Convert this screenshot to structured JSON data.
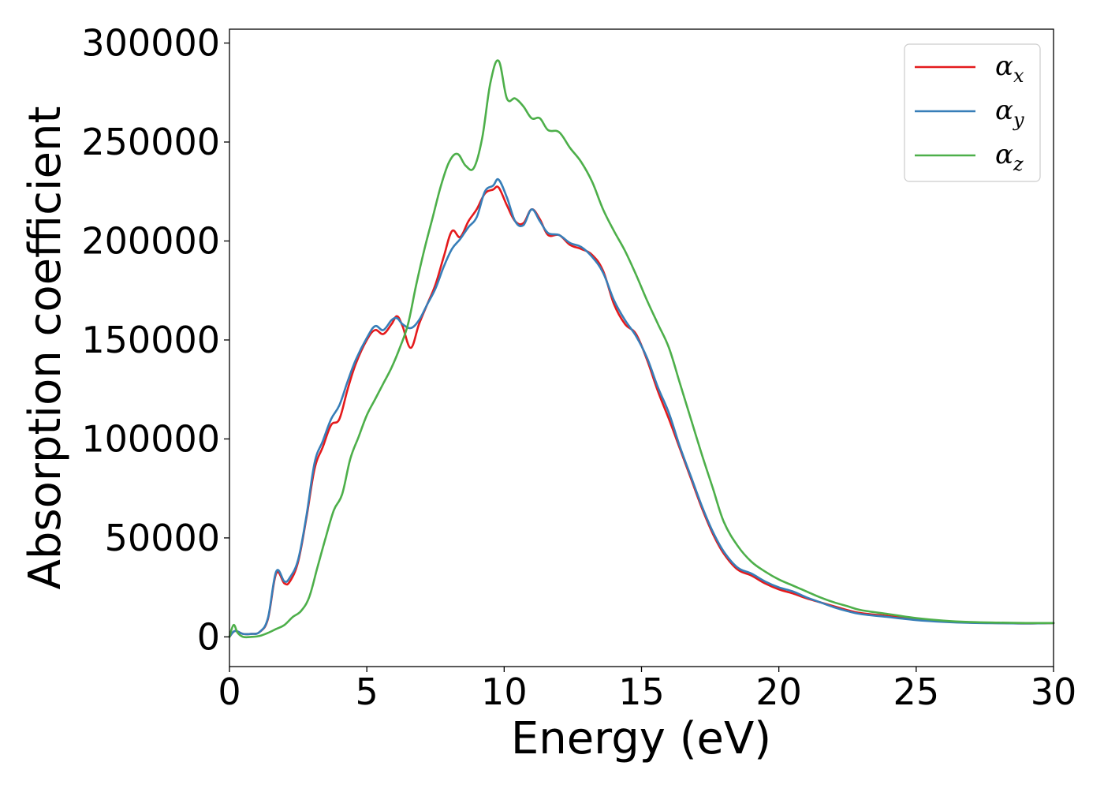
{
  "chart_data": {
    "type": "line",
    "xlabel": "Energy (eV)",
    "ylabel": "Absorption coefficient",
    "xlim": [
      0,
      30
    ],
    "ylim": [
      -15000,
      307000
    ],
    "xticks": [
      0,
      5,
      10,
      15,
      20,
      25,
      30
    ],
    "xtick_labels": [
      "0",
      "5",
      "10",
      "15",
      "20",
      "25",
      "30"
    ],
    "yticks": [
      0,
      50000,
      100000,
      150000,
      200000,
      250000,
      300000
    ],
    "ytick_labels": [
      "0",
      "50000",
      "100000",
      "150000",
      "200000",
      "250000",
      "300000"
    ],
    "grid": false,
    "legend_position": "top-right",
    "series": [
      {
        "name": "αx",
        "legend_symbol": "α",
        "legend_subscript": "x",
        "color": "#e41a1c",
        "x": [
          0,
          0.2,
          0.5,
          0.8,
          1.1,
          1.4,
          1.7,
          2.0,
          2.2,
          2.5,
          2.8,
          3.1,
          3.4,
          3.7,
          4.0,
          4.3,
          4.6,
          5.0,
          5.3,
          5.6,
          5.9,
          6.1,
          6.3,
          6.6,
          6.9,
          7.2,
          7.5,
          7.8,
          8.1,
          8.4,
          8.7,
          9.0,
          9.3,
          9.6,
          9.8,
          10.1,
          10.4,
          10.7,
          11.0,
          11.3,
          11.6,
          12.0,
          12.4,
          12.8,
          13.2,
          13.6,
          14.0,
          14.4,
          14.8,
          15.2,
          15.6,
          16.0,
          16.4,
          16.8,
          17.2,
          17.6,
          18.0,
          18.5,
          19.0,
          19.5,
          20.0,
          20.5,
          21.0,
          21.5,
          22.0,
          22.5,
          23.0,
          24.0,
          25.0,
          26.0,
          27.0,
          28.0,
          29.0,
          30.0
        ],
        "y": [
          0,
          3000,
          1500,
          1500,
          2500,
          9000,
          32000,
          27000,
          28000,
          38000,
          60000,
          85000,
          96000,
          107000,
          110000,
          125000,
          138000,
          150000,
          155000,
          153000,
          158000,
          162000,
          157000,
          146000,
          158000,
          168000,
          178000,
          192000,
          205000,
          202000,
          210000,
          216000,
          224000,
          226000,
          227000,
          218000,
          210000,
          209000,
          216000,
          211000,
          203000,
          203000,
          198000,
          196000,
          193000,
          185000,
          168000,
          158000,
          153000,
          140000,
          124000,
          110000,
          95000,
          80000,
          65000,
          52000,
          42000,
          34000,
          31000,
          27000,
          24000,
          22000,
          19500,
          17500,
          15500,
          13500,
          12000,
          10500,
          9000,
          7800,
          7200,
          7000,
          6800,
          7000
        ]
      },
      {
        "name": "αy",
        "legend_symbol": "α",
        "legend_subscript": "y",
        "color": "#377eb8",
        "x": [
          0,
          0.2,
          0.5,
          0.8,
          1.1,
          1.4,
          1.7,
          2.0,
          2.2,
          2.5,
          2.8,
          3.1,
          3.4,
          3.7,
          4.0,
          4.3,
          4.6,
          5.0,
          5.3,
          5.6,
          5.9,
          6.1,
          6.3,
          6.6,
          6.9,
          7.2,
          7.5,
          7.8,
          8.1,
          8.4,
          8.7,
          9.0,
          9.3,
          9.6,
          9.8,
          10.1,
          10.4,
          10.7,
          11.0,
          11.3,
          11.6,
          12.0,
          12.4,
          12.8,
          13.2,
          13.6,
          14.0,
          14.4,
          14.8,
          15.2,
          15.6,
          16.0,
          16.4,
          16.8,
          17.2,
          17.6,
          18.0,
          18.5,
          19.0,
          19.5,
          20.0,
          20.5,
          21.0,
          21.5,
          22.0,
          22.5,
          23.0,
          24.0,
          25.0,
          26.0,
          27.0,
          28.0,
          29.0,
          30.0
        ],
        "y": [
          0,
          3000,
          1500,
          1500,
          2500,
          9500,
          33000,
          28000,
          30000,
          39000,
          61000,
          88000,
          99000,
          110000,
          117000,
          129000,
          140000,
          151000,
          157000,
          155000,
          160000,
          161000,
          158000,
          156000,
          160000,
          168000,
          176000,
          187000,
          196000,
          201000,
          207000,
          212000,
          225000,
          228000,
          231000,
          222000,
          210000,
          208000,
          216000,
          210000,
          204000,
          203000,
          199000,
          197000,
          192000,
          184000,
          170000,
          160000,
          152000,
          141000,
          126000,
          113000,
          96000,
          81000,
          66000,
          53000,
          43000,
          35000,
          32000,
          28000,
          25000,
          23000,
          20000,
          17500,
          15000,
          13000,
          11500,
          10000,
          8500,
          7600,
          7100,
          6900,
          6800,
          7000
        ]
      },
      {
        "name": "αz",
        "legend_symbol": "α",
        "legend_subscript": "z",
        "color": "#4daf4a",
        "x": [
          0,
          0.15,
          0.3,
          0.5,
          0.8,
          1.1,
          1.4,
          1.7,
          2.0,
          2.3,
          2.6,
          2.9,
          3.2,
          3.5,
          3.8,
          4.1,
          4.4,
          4.7,
          5.0,
          5.3,
          5.6,
          5.9,
          6.2,
          6.5,
          6.8,
          7.1,
          7.4,
          7.7,
          8.0,
          8.3,
          8.6,
          8.9,
          9.2,
          9.5,
          9.8,
          10.1,
          10.4,
          10.7,
          11.0,
          11.3,
          11.6,
          12.0,
          12.4,
          12.8,
          13.2,
          13.6,
          14.0,
          14.4,
          14.8,
          15.2,
          15.6,
          16.0,
          16.4,
          16.8,
          17.2,
          17.6,
          18.0,
          18.5,
          19.0,
          19.5,
          20.0,
          20.5,
          21.0,
          21.5,
          22.0,
          22.5,
          23.0,
          24.0,
          25.0,
          26.0,
          27.0,
          28.0,
          29.0,
          30.0
        ],
        "y": [
          0,
          6000,
          2000,
          0,
          0,
          500,
          2000,
          4000,
          6000,
          10000,
          13000,
          20000,
          35000,
          50000,
          64000,
          72000,
          90000,
          101000,
          112000,
          120000,
          128000,
          136000,
          146000,
          158000,
          178000,
          196000,
          212000,
          228000,
          240000,
          244000,
          238000,
          237000,
          252000,
          280000,
          291000,
          272000,
          272000,
          268000,
          262000,
          262000,
          256000,
          255000,
          247000,
          240000,
          230000,
          216000,
          205000,
          195000,
          183000,
          170000,
          158000,
          146000,
          128000,
          110000,
          92000,
          75000,
          58000,
          46000,
          38000,
          33000,
          29000,
          26000,
          23000,
          20000,
          17500,
          15500,
          13500,
          11500,
          9500,
          8200,
          7500,
          7200,
          7000,
          7000
        ]
      }
    ]
  }
}
